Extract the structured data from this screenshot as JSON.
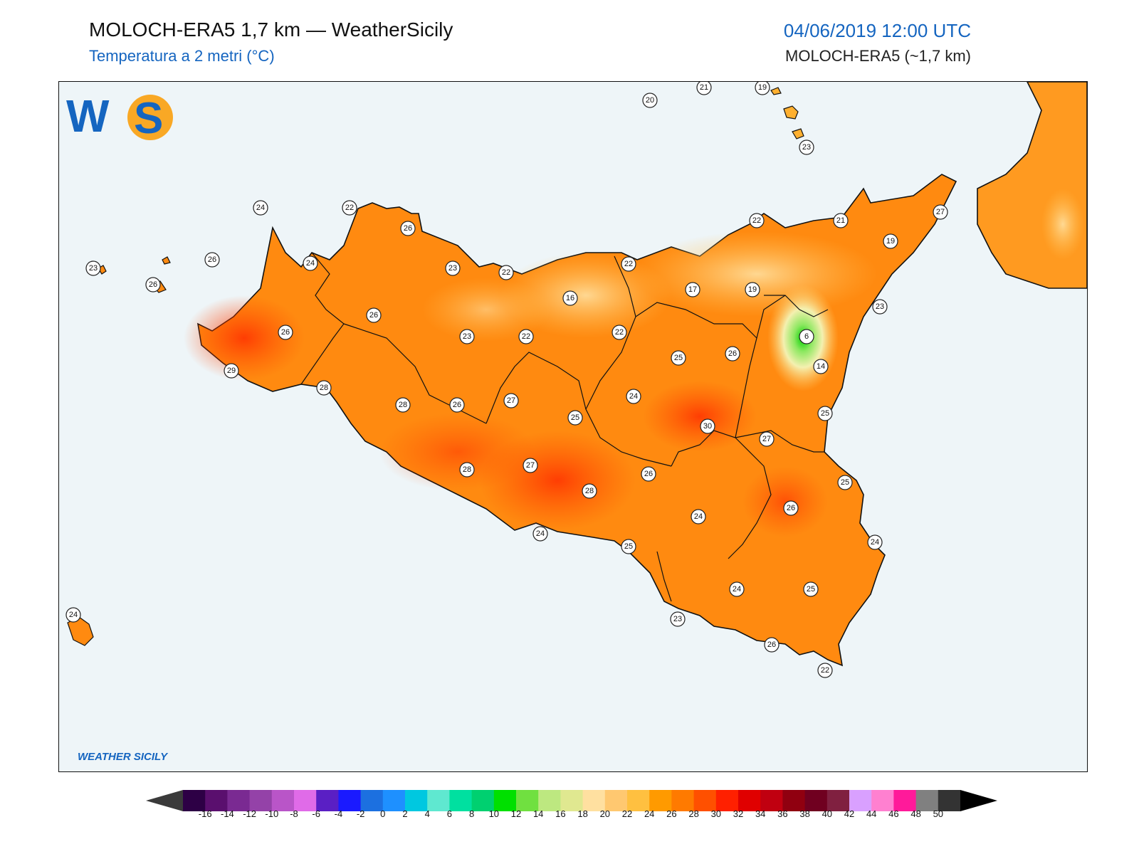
{
  "header": {
    "title": "MOLOCH-ERA5 1,7 km — WeatherSicily",
    "subtitle": "Temperatura a 2 metri (°C)",
    "datetime": "04/06/2019 12:00 UTC",
    "model": "MOLOCH-ERA5 (~1,7 km)"
  },
  "logo": {
    "text": "WEATHER SICILY",
    "initials": "WS"
  },
  "station_values": [
    {
      "v": "20"
    },
    {
      "v": "21"
    },
    {
      "v": "19"
    },
    {
      "v": "23"
    },
    {
      "v": "24"
    },
    {
      "v": "22"
    },
    {
      "v": "26"
    },
    {
      "v": "27"
    },
    {
      "v": "21"
    },
    {
      "v": "22"
    },
    {
      "v": "19"
    },
    {
      "v": "23"
    },
    {
      "v": "26"
    },
    {
      "v": "26"
    },
    {
      "v": "24"
    },
    {
      "v": "23"
    },
    {
      "v": "22"
    },
    {
      "v": "22"
    },
    {
      "v": "17"
    },
    {
      "v": "19"
    },
    {
      "v": "16"
    },
    {
      "v": "26"
    },
    {
      "v": "23"
    },
    {
      "v": "22"
    },
    {
      "v": "22"
    },
    {
      "v": "26"
    },
    {
      "v": "6"
    },
    {
      "v": "14"
    },
    {
      "v": "23"
    },
    {
      "v": "25"
    },
    {
      "v": "26"
    },
    {
      "v": "29"
    },
    {
      "v": "28"
    },
    {
      "v": "28"
    },
    {
      "v": "26"
    },
    {
      "v": "27"
    },
    {
      "v": "25"
    },
    {
      "v": "24"
    },
    {
      "v": "30"
    },
    {
      "v": "27"
    },
    {
      "v": "25"
    },
    {
      "v": "28"
    },
    {
      "v": "27"
    },
    {
      "v": "28"
    },
    {
      "v": "26"
    },
    {
      "v": "25"
    },
    {
      "v": "24"
    },
    {
      "v": "26"
    },
    {
      "v": "24"
    },
    {
      "v": "25"
    },
    {
      "v": "24"
    },
    {
      "v": "24"
    },
    {
      "v": "25"
    },
    {
      "v": "23"
    },
    {
      "v": "26"
    },
    {
      "v": "22"
    },
    {
      "v": "24"
    }
  ],
  "colorbar": {
    "labels": [
      "-16",
      "-14",
      "-12",
      "-10",
      "-8",
      "-6",
      "-4",
      "-2",
      "0",
      "2",
      "4",
      "6",
      "8",
      "10",
      "12",
      "14",
      "16",
      "18",
      "20",
      "22",
      "24",
      "26",
      "28",
      "30",
      "32",
      "34",
      "36",
      "38",
      "40",
      "42",
      "44",
      "46",
      "48",
      "50"
    ],
    "colors": [
      "#2d0045",
      "#5a0f6e",
      "#7a2a92",
      "#9442a8",
      "#b955c8",
      "#e06be8",
      "#5a1fc4",
      "#1a1aff",
      "#1c70e0",
      "#1e90ff",
      "#00c8e0",
      "#5fe8d0",
      "#00e0a0",
      "#00d070",
      "#00e000",
      "#70e040",
      "#bde880",
      "#e0e890",
      "#ffe0a0",
      "#ffc870",
      "#ffc040",
      "#ff9a00",
      "#ff7a00",
      "#ff5000",
      "#ff2000",
      "#e00000",
      "#c00010",
      "#900010",
      "#700020",
      "#802040",
      "#d9a0ff",
      "#ff80d0",
      "#ff1a9a",
      "#808080",
      "#333333"
    ],
    "under_color": "#3a3a3a",
    "over_color": "#000000"
  }
}
